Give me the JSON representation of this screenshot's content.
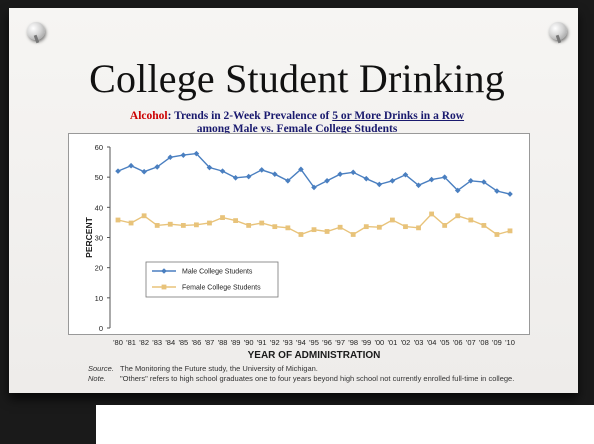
{
  "slide": {
    "title": "College Student Drinking"
  },
  "figure": {
    "subtitle_keyword": "Alcohol",
    "subtitle_mid": ": Trends in 2-Week Prevalence of ",
    "subtitle_underlined": "5 or More Drinks in a Row",
    "subtitle_line2": "among Male vs. Female College Students",
    "source_label": "Source.",
    "source_text": "The Monitoring the Future study, the University of Michigan.",
    "note_label": "Note.",
    "note_text": "\"Others\" refers to high school graduates one to four years beyond high school not currently enrolled full-time in college."
  },
  "chart_data": {
    "type": "line",
    "xlabel": "YEAR OF ADMINISTRATION",
    "ylabel": "PERCENT",
    "ylim": [
      0,
      60
    ],
    "yticks": [
      0,
      10,
      20,
      30,
      40,
      50,
      60
    ],
    "grid": false,
    "legend_position": "lower-left",
    "categories": [
      "'80",
      "'81",
      "'82",
      "'83",
      "'84",
      "'85",
      "'86",
      "'87",
      "'88",
      "'89",
      "'90",
      "'91",
      "'92",
      "'93",
      "'94",
      "'95",
      "'96",
      "'97",
      "'98",
      "'99",
      "'00",
      "'01",
      "'02",
      "'03",
      "'04",
      "'05",
      "'06",
      "'07",
      "'08",
      "'09",
      "'10"
    ],
    "series": [
      {
        "name": "Male College Students",
        "color": "#4a7fc0",
        "marker": "diamond",
        "values": [
          52.0,
          53.8,
          51.8,
          53.4,
          56.6,
          57.3,
          57.8,
          53.2,
          52.0,
          49.8,
          50.2,
          52.4,
          51.0,
          48.8,
          52.6,
          46.6,
          48.8,
          51.0,
          51.6,
          49.5,
          47.6,
          48.8,
          50.8,
          47.3,
          49.2,
          50.0,
          45.6,
          48.8,
          48.4,
          45.4,
          44.4
        ]
      },
      {
        "name": "Female College Students",
        "color": "#e8c37a",
        "marker": "square",
        "values": [
          35.8,
          34.8,
          37.2,
          34.0,
          34.4,
          34.0,
          34.2,
          34.8,
          36.6,
          35.6,
          34.0,
          34.8,
          33.6,
          33.2,
          31.0,
          32.6,
          32.0,
          33.4,
          31.0,
          33.6,
          33.4,
          35.8,
          33.6,
          33.2,
          37.8,
          34.0,
          37.2,
          35.8,
          34.0,
          31.0,
          32.2
        ]
      }
    ]
  }
}
